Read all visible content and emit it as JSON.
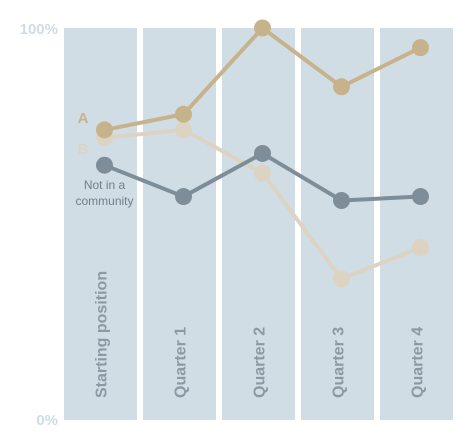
{
  "chart_data": {
    "type": "line",
    "categories": [
      "Starting position",
      "Quarter 1",
      "Quarter 2",
      "Quarter 3",
      "Quarter 4"
    ],
    "ylim": [
      0,
      100
    ],
    "y_ticks": [
      {
        "value": 100,
        "label": "100%"
      },
      {
        "value": 0,
        "label": "0%"
      }
    ],
    "grid": false,
    "series": [
      {
        "name": "A",
        "values": [
          74,
          78,
          100,
          85,
          95
        ],
        "color": "#c6b38b"
      },
      {
        "name": "B",
        "values": [
          72,
          74,
          63,
          36,
          44
        ],
        "color": "#ddd3c3"
      },
      {
        "name": "",
        "values": [
          65,
          57,
          68,
          56,
          57
        ],
        "color": "#7e8e99"
      }
    ],
    "annotations": [
      {
        "series_index": 2,
        "lines": [
          "Not in a",
          "community"
        ]
      }
    ],
    "column_color": "#d0dde5"
  }
}
